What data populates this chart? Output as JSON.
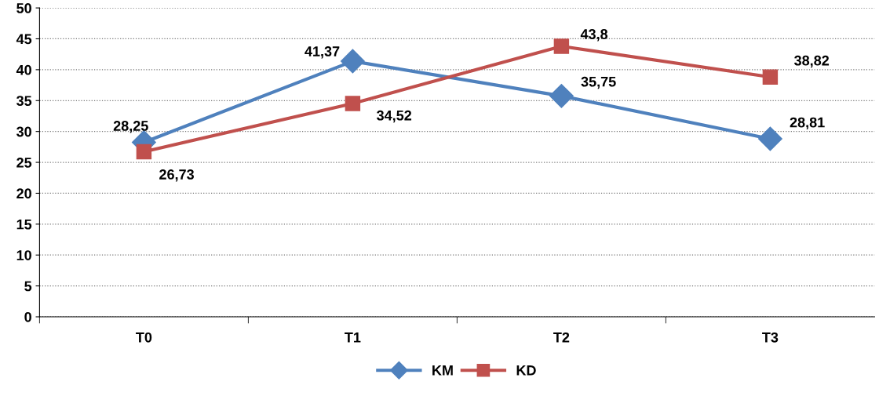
{
  "chart_data": {
    "type": "line",
    "categories": [
      "T0",
      "T1",
      "T2",
      "T3"
    ],
    "series": [
      {
        "name": "KM",
        "color": "#4f81bd",
        "marker": "diamond",
        "values": [
          28.25,
          41.37,
          35.75,
          28.81
        ],
        "value_labels": [
          "28,25",
          "41,37",
          "35,75",
          "28,81"
        ]
      },
      {
        "name": "KD",
        "color": "#c0504d",
        "marker": "square",
        "values": [
          26.73,
          34.52,
          43.8,
          38.82
        ],
        "value_labels": [
          "26,73",
          "34,52",
          "43,8",
          "38,82"
        ]
      }
    ],
    "ylim": [
      0,
      50
    ],
    "yticks": [
      0,
      5,
      10,
      15,
      20,
      25,
      30,
      35,
      40,
      45,
      50
    ],
    "grid": "y",
    "legend": "bottom",
    "line_style": "solid"
  }
}
